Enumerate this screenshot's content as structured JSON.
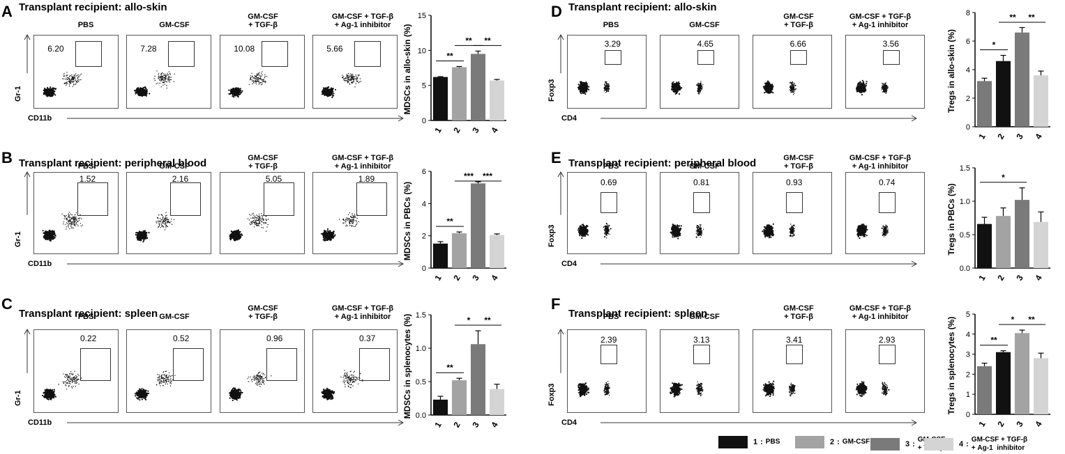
{
  "panels": [
    {
      "letter": "A",
      "title": "Transplant recipient: allo-skin",
      "y_axis": "Gr-1",
      "x_axis": "CD11b",
      "headers": [
        [
          "PBS"
        ],
        [
          "GM-CSF"
        ],
        [
          "GM-CSF",
          "+ TGF-β"
        ],
        [
          "GM-CSF + TGF-β",
          "+ Ag-1 inhibitor"
        ]
      ],
      "gates": [
        "6.20",
        "7.28",
        "10.08",
        "5.66"
      ]
    },
    {
      "letter": "B",
      "title": "Transplant recipient: peripheral blood",
      "y_axis": "Gr-1",
      "x_axis": "CD11b",
      "headers": [
        [
          "PBS"
        ],
        [
          "GM-CSF"
        ],
        [
          "GM-CSF",
          "+ TGF-β"
        ],
        [
          "GM-CSF + TGF-β",
          "+ Ag-1 inhibitor"
        ]
      ],
      "gates": [
        "1.52",
        "2.16",
        "5.05",
        "1.89"
      ]
    },
    {
      "letter": "C",
      "title": "Transplant recipient: spleen",
      "y_axis": "Gr-1",
      "x_axis": "CD11b",
      "headers": [
        [
          "PBS"
        ],
        [
          "GM-CSF"
        ],
        [
          "GM-CSF",
          "+ TGF-β"
        ],
        [
          "GM-CSF + TGF-β",
          "+ Ag-1 inhibitor"
        ]
      ],
      "gates": [
        "0.22",
        "0.52",
        "0.96",
        "0.37"
      ]
    },
    {
      "letter": "D",
      "title": "Transplant recipient: allo-skin",
      "y_axis": "Foxp3",
      "x_axis": "CD4",
      "headers": [
        [
          "PBS"
        ],
        [
          "GM-CSF"
        ],
        [
          "GM-CSF",
          "+ TGF-β"
        ],
        [
          "GM-CSF + TGF-β",
          "+ Ag-1 inhibitor"
        ]
      ],
      "gates": [
        "3.29",
        "4.65",
        "6.66",
        "3.56"
      ]
    },
    {
      "letter": "E",
      "title": "Transplant recipient: peripheral blood",
      "y_axis": "Foxp3",
      "x_axis": "CD4",
      "headers": [
        [
          "PBS"
        ],
        [
          "GM-CSF"
        ],
        [
          "GM-CSF",
          "+ TGF-β"
        ],
        [
          "GM-CSF + TGF-β",
          "+ Ag-1 inhibitor"
        ]
      ],
      "gates": [
        "0.69",
        "0.81",
        "0.93",
        "0.74"
      ]
    },
    {
      "letter": "F",
      "title": "Transplant recipient: spleen",
      "y_axis": "Foxp3",
      "x_axis": "CD4",
      "headers": [
        [
          "PBS"
        ],
        [
          "GM-CSF"
        ],
        [
          "GM-CSF",
          "+ TGF-β"
        ],
        [
          "GM-CSF + TGF-β",
          "+ Ag-1 inhibitor"
        ]
      ],
      "gates": [
        "2.39",
        "3.13",
        "3.41",
        "2.93"
      ]
    }
  ],
  "chart_data": [
    {
      "type": "bar",
      "panel": "A",
      "ylabel": "MDSCs in allo-skin (%)",
      "categories": [
        "1",
        "2",
        "3",
        "4"
      ],
      "values": [
        6.2,
        7.6,
        9.5,
        5.7
      ],
      "errors": [
        0.05,
        0.1,
        0.4,
        0.15
      ],
      "ylim": [
        0,
        15
      ],
      "yticks": [
        "0",
        "5",
        "10",
        "15"
      ],
      "colors": [
        "#111111",
        "#a3a3a3",
        "#7a7a7a",
        "#d4d4d4"
      ],
      "significance": [
        {
          "from": "1",
          "to": "2",
          "label": "**"
        },
        {
          "from": "2",
          "to": "3",
          "label": "**"
        },
        {
          "from": "3",
          "to": "4",
          "label": "**"
        }
      ]
    },
    {
      "type": "bar",
      "panel": "B",
      "ylabel": "MDSCs in PBCs (%)",
      "categories": [
        "1",
        "2",
        "3",
        "4"
      ],
      "values": [
        1.52,
        2.16,
        5.25,
        2.05
      ],
      "errors": [
        0.12,
        0.08,
        0.1,
        0.07
      ],
      "ylim": [
        0,
        6
      ],
      "yticks": [
        "0",
        "2",
        "4",
        "6"
      ],
      "colors": [
        "#111111",
        "#a3a3a3",
        "#7a7a7a",
        "#d4d4d4"
      ],
      "significance": [
        {
          "from": "1",
          "to": "2",
          "label": "**"
        },
        {
          "from": "2",
          "to": "3",
          "label": "***"
        },
        {
          "from": "3",
          "to": "4",
          "label": "***"
        }
      ]
    },
    {
      "type": "bar",
      "panel": "C",
      "ylabel": "MDSCs in splenocytes (%)",
      "categories": [
        "1",
        "2",
        "3",
        "4"
      ],
      "values": [
        0.23,
        0.52,
        1.06,
        0.39
      ],
      "errors": [
        0.05,
        0.03,
        0.2,
        0.07
      ],
      "ylim": [
        0,
        1.5
      ],
      "yticks": [
        "0.0",
        "0.5",
        "1.0",
        "1.5"
      ],
      "colors": [
        "#111111",
        "#a3a3a3",
        "#7a7a7a",
        "#d4d4d4"
      ],
      "significance": [
        {
          "from": "1",
          "to": "2",
          "label": "**"
        },
        {
          "from": "2",
          "to": "3",
          "label": "*"
        },
        {
          "from": "3",
          "to": "4",
          "label": "**"
        }
      ]
    },
    {
      "type": "bar",
      "panel": "D",
      "ylabel": "Tregs in allo-skin (%)",
      "categories": [
        "1",
        "2",
        "3",
        "4"
      ],
      "values": [
        3.2,
        4.6,
        6.6,
        3.6
      ],
      "errors": [
        0.2,
        0.4,
        0.35,
        0.3
      ],
      "ylim": [
        0,
        8
      ],
      "yticks": [
        "0",
        "2",
        "4",
        "6",
        "8"
      ],
      "colors": [
        "#7a7a7a",
        "#111111",
        "#7a7a7a",
        "#d4d4d4"
      ],
      "significance": [
        {
          "from": "1",
          "to": "2",
          "label": "*"
        },
        {
          "from": "2",
          "to": "3",
          "label": "**"
        },
        {
          "from": "3",
          "to": "4",
          "label": "**"
        }
      ]
    },
    {
      "type": "bar",
      "panel": "E",
      "ylabel": "Tregs in PBCs (%)",
      "categories": [
        "1",
        "2",
        "3",
        "4"
      ],
      "values": [
        0.66,
        0.78,
        1.02,
        0.69
      ],
      "errors": [
        0.1,
        0.12,
        0.18,
        0.15
      ],
      "ylim": [
        0,
        1.5
      ],
      "yticks": [
        "0.0",
        "0.5",
        "1.0",
        "1.5"
      ],
      "colors": [
        "#111111",
        "#a3a3a3",
        "#7a7a7a",
        "#d4d4d4"
      ],
      "significance": [
        {
          "from": "1",
          "to": "3",
          "label": "*"
        }
      ]
    },
    {
      "type": "bar",
      "panel": "F",
      "ylabel": "Tregs in splenocytes (%)",
      "categories": [
        "1",
        "2",
        "3",
        "4"
      ],
      "values": [
        2.4,
        3.1,
        4.05,
        2.8
      ],
      "errors": [
        0.15,
        0.07,
        0.15,
        0.25
      ],
      "ylim": [
        0,
        5
      ],
      "yticks": [
        "0",
        "1",
        "2",
        "3",
        "4",
        "5"
      ],
      "colors": [
        "#7a7a7a",
        "#111111",
        "#a3a3a3",
        "#d4d4d4"
      ],
      "significance": [
        {
          "from": "1",
          "to": "2",
          "label": "**"
        },
        {
          "from": "2",
          "to": "3",
          "label": "*"
        },
        {
          "from": "3",
          "to": "4",
          "label": "**"
        }
      ]
    }
  ],
  "legend": [
    {
      "num": "1",
      "label": "PBS",
      "color": "#111111"
    },
    {
      "num": "2",
      "label": "GM-CSF",
      "color": "#a3a3a3"
    },
    {
      "num": "3",
      "label": "GM-CSF\n+ TGF-β",
      "color": "#7a7a7a"
    },
    {
      "num": "4",
      "label": "GM-CSF + TGF-β\n+ Ag-1  inhibitor",
      "color": "#d4d4d4"
    }
  ]
}
